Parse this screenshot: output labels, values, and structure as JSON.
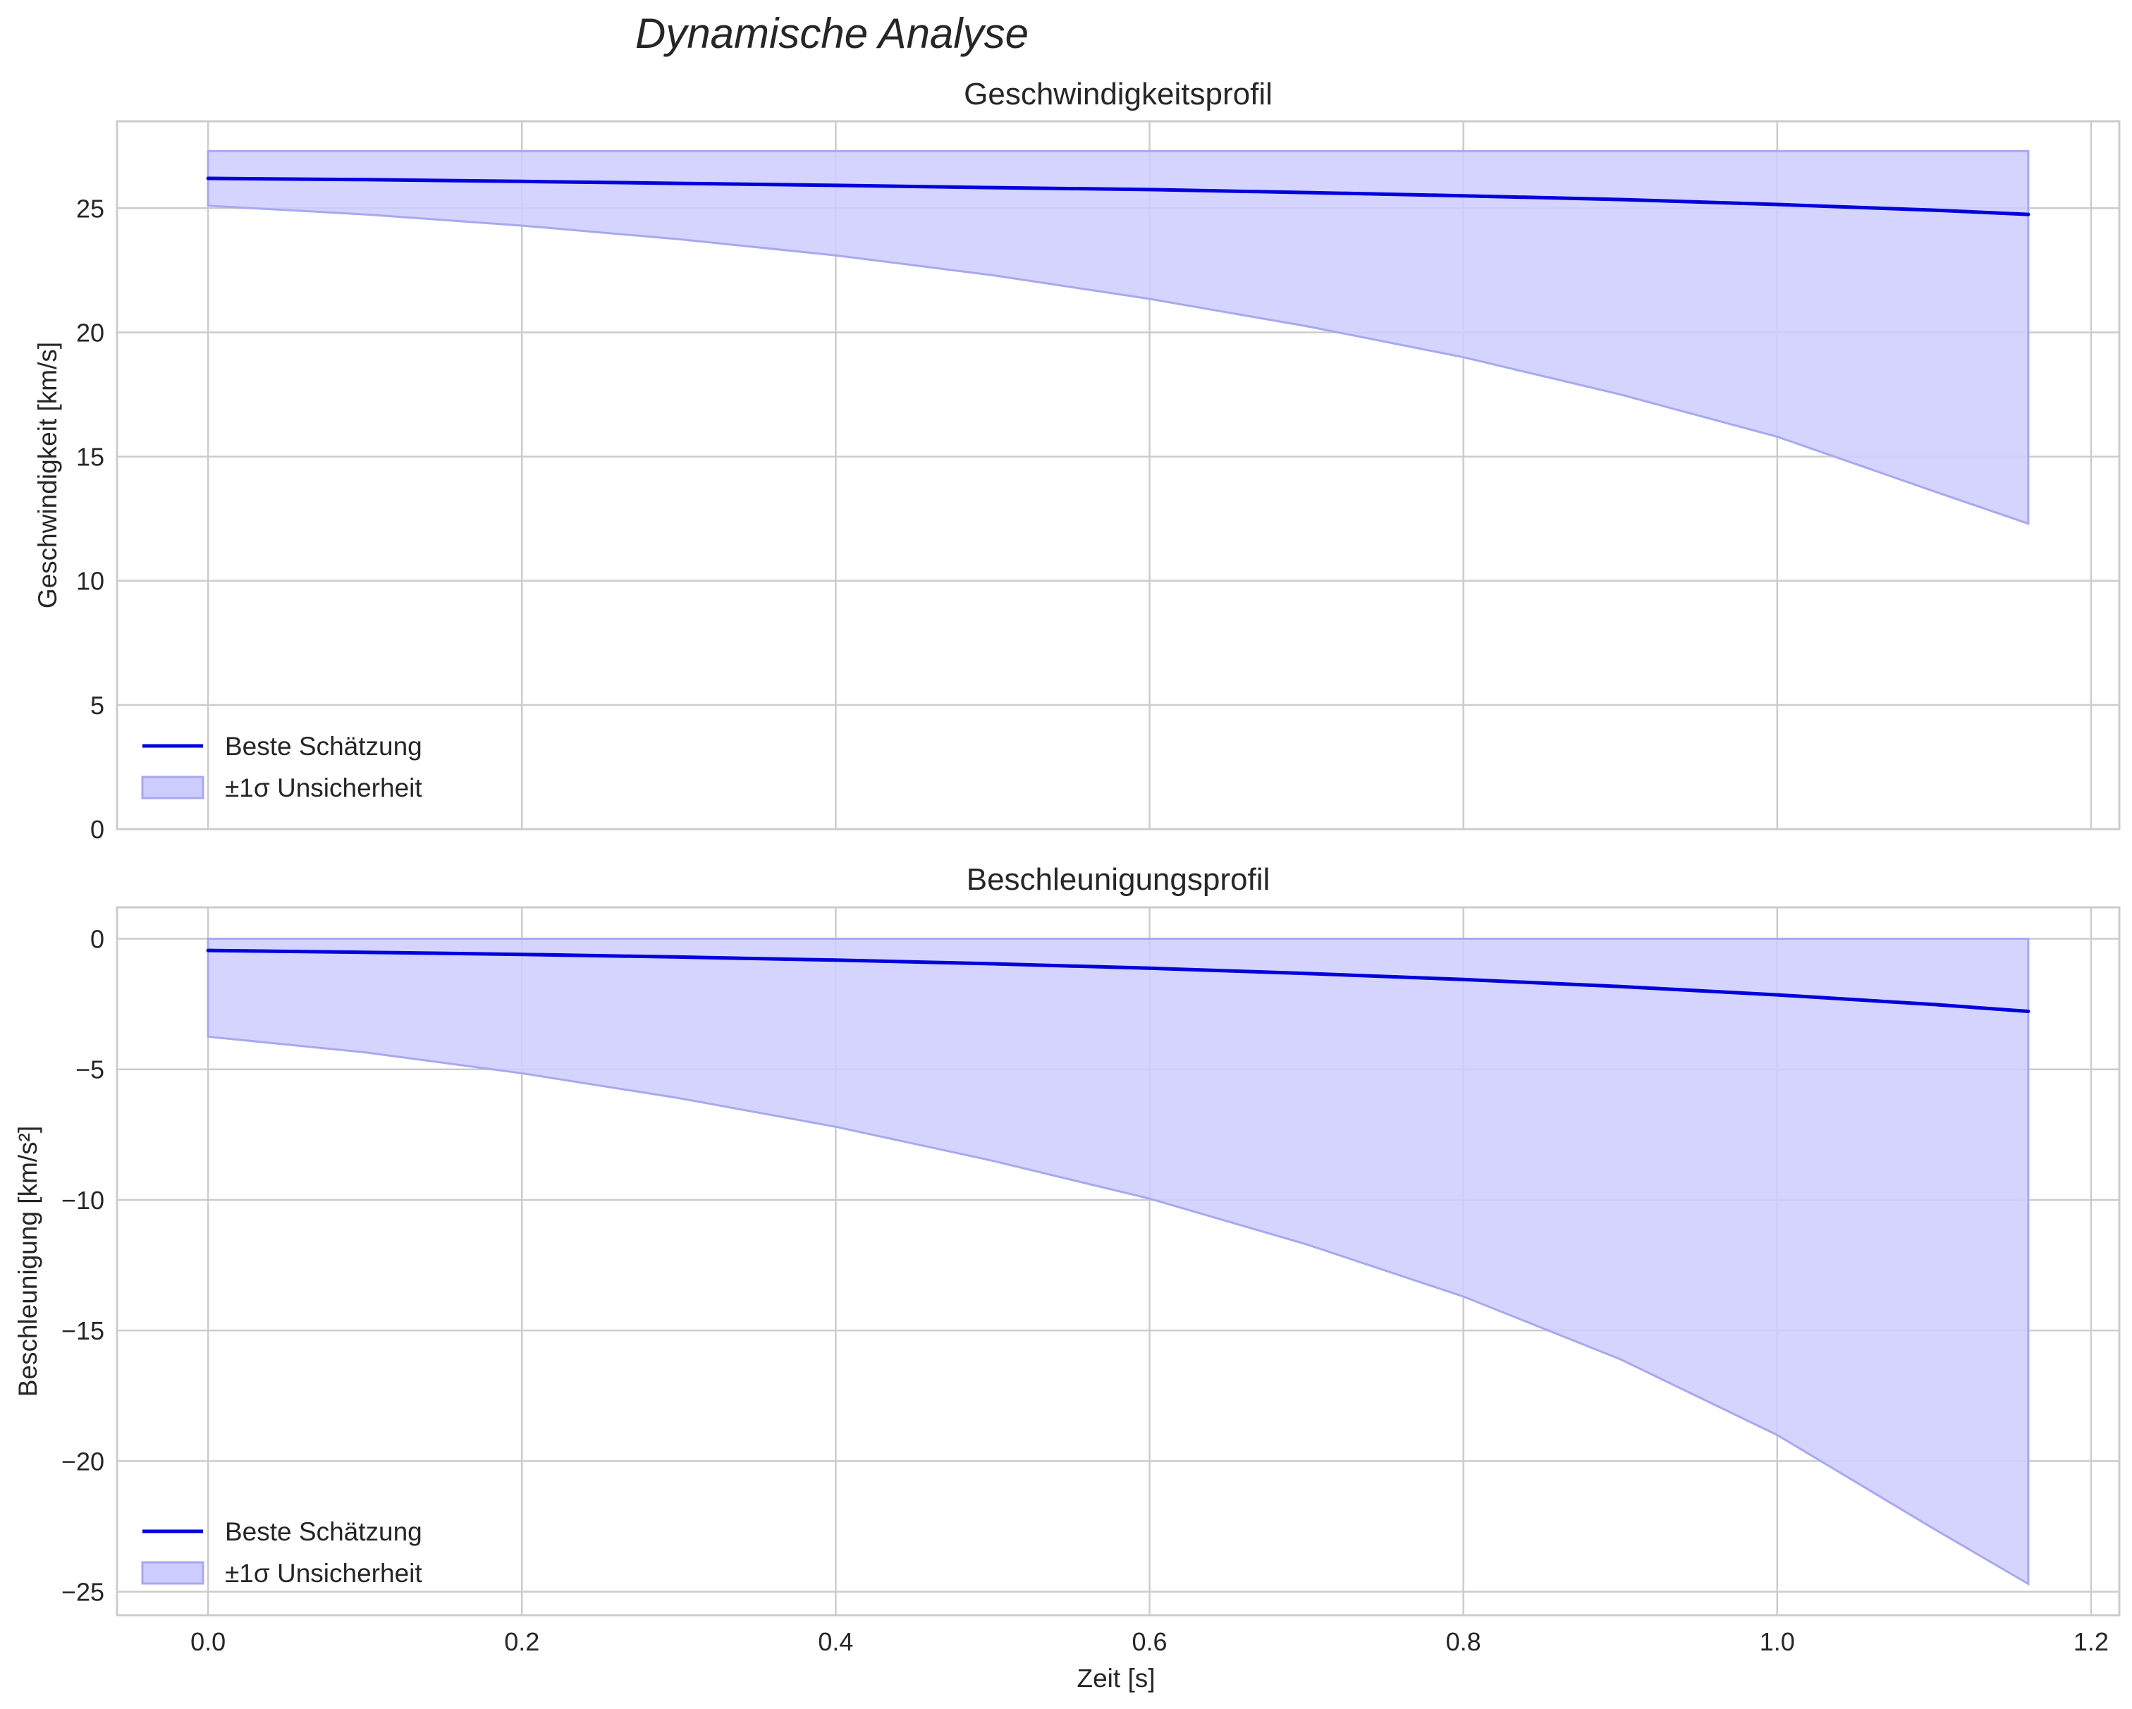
{
  "figure": {
    "suptitle": "Dynamische Analyse",
    "xlabel": "Zeit [s]"
  },
  "colors": {
    "line": "#0000dd",
    "band_fill": "#ccccff",
    "band_edge": "#a8a8f0",
    "grid": "#cccccc",
    "spine": "#cccccc",
    "text": "#262626"
  },
  "chart_data": [
    {
      "type": "line",
      "title": "Geschwindigkeitsprofil",
      "xlabel": "",
      "ylabel": "Geschwindigkeit [km/s]",
      "xlim": [
        -0.058,
        1.218
      ],
      "ylim": [
        0,
        28.5
      ],
      "xticks": [
        0.0,
        0.2,
        0.4,
        0.6,
        0.8,
        1.0,
        1.2
      ],
      "xticklabels": [],
      "yticks": [
        0,
        5,
        10,
        15,
        20,
        25
      ],
      "yticklabels": [
        "0",
        "5",
        "10",
        "15",
        "20",
        "25"
      ],
      "grid": true,
      "legend": {
        "position": "lower-left",
        "entries": [
          "Beste Schätzung",
          "±1σ Unsicherheit"
        ]
      },
      "x": [
        0.0,
        0.1,
        0.2,
        0.3,
        0.4,
        0.5,
        0.6,
        0.7,
        0.8,
        0.9,
        1.0,
        1.1,
        1.16
      ],
      "series": [
        {
          "name": "Beste Schätzung",
          "kind": "line",
          "values": [
            26.2,
            26.15,
            26.08,
            26.0,
            25.92,
            25.83,
            25.75,
            25.63,
            25.5,
            25.35,
            25.15,
            24.92,
            24.75
          ]
        },
        {
          "name": "±1σ Unsicherheit",
          "kind": "band",
          "lower": [
            25.1,
            24.75,
            24.3,
            23.75,
            23.1,
            22.3,
            21.35,
            20.25,
            19.0,
            17.5,
            15.8,
            13.6,
            12.3
          ],
          "upper": [
            27.3,
            27.3,
            27.3,
            27.3,
            27.3,
            27.3,
            27.3,
            27.3,
            27.3,
            27.3,
            27.3,
            27.3,
            27.3
          ]
        }
      ]
    },
    {
      "type": "line",
      "title": "Beschleunigungsprofil",
      "xlabel": "Zeit [s]",
      "ylabel": "Beschleunigung [km/s²]",
      "xlim": [
        -0.058,
        1.218
      ],
      "ylim": [
        -25.9,
        1.2
      ],
      "xticks": [
        0.0,
        0.2,
        0.4,
        0.6,
        0.8,
        1.0,
        1.2
      ],
      "xticklabels": [
        "0.0",
        "0.2",
        "0.4",
        "0.6",
        "0.8",
        "1.0",
        "1.2"
      ],
      "yticks": [
        0,
        -5,
        -10,
        -15,
        -20,
        -25
      ],
      "yticklabels": [
        "0",
        "−5",
        "−10",
        "−15",
        "−20",
        "−25"
      ],
      "grid": true,
      "legend": {
        "position": "lower-left",
        "entries": [
          "Beste Schätzung",
          "±1σ Unsicherheit"
        ]
      },
      "x": [
        0.0,
        0.1,
        0.2,
        0.3,
        0.4,
        0.5,
        0.6,
        0.7,
        0.8,
        0.9,
        1.0,
        1.1,
        1.16
      ],
      "series": [
        {
          "name": "Beste Schätzung",
          "kind": "line",
          "values": [
            -0.45,
            -0.52,
            -0.6,
            -0.7,
            -0.82,
            -0.96,
            -1.13,
            -1.33,
            -1.56,
            -1.83,
            -2.15,
            -2.52,
            -2.78
          ]
        },
        {
          "name": "±1σ Unsicherheit",
          "kind": "band",
          "lower": [
            -3.75,
            -4.35,
            -5.15,
            -6.1,
            -7.2,
            -8.5,
            -9.95,
            -11.7,
            -13.7,
            -16.1,
            -19.0,
            -22.6,
            -24.7
          ],
          "upper": [
            0,
            0,
            0,
            0,
            0,
            0,
            0,
            0,
            0,
            0,
            0,
            0,
            0
          ]
        }
      ]
    }
  ]
}
